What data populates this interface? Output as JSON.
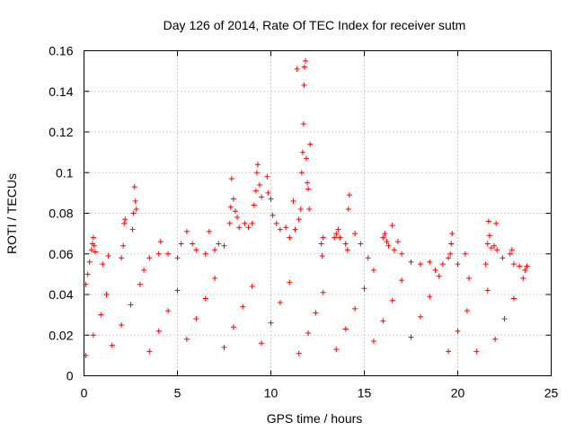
{
  "chart_data": {
    "type": "scatter",
    "title": "Day 126 of 2014, Rate Of TEC Index for receiver sutm",
    "xlabel": "GPS time / hours",
    "ylabel": "ROTI / TECUs",
    "xlim": [
      0,
      25
    ],
    "ylim": [
      0,
      0.16
    ],
    "xticks": [
      0,
      5,
      10,
      15,
      20,
      25
    ],
    "yticks": [
      0,
      0.02,
      0.04,
      0.06,
      0.08,
      0.1,
      0.12,
      0.14,
      0.16
    ],
    "xtick_labels": [
      "0",
      "5",
      "10",
      "15",
      "20",
      "25"
    ],
    "ytick_labels": [
      "0",
      "0.02",
      "0.04",
      "0.06",
      "0.08",
      "0.1",
      "0.12",
      "0.14",
      "0.16"
    ],
    "grid": true,
    "marker": "+",
    "color": "#ff0000",
    "series": [
      {
        "name": "ROTI",
        "points": [
          [
            0.1,
            0.045
          ],
          [
            0.2,
            0.05
          ],
          [
            0.3,
            0.056
          ],
          [
            0.4,
            0.062
          ],
          [
            0.45,
            0.065
          ],
          [
            0.5,
            0.068
          ],
          [
            0.55,
            0.064
          ],
          [
            0.6,
            0.061
          ],
          [
            1.0,
            0.055
          ],
          [
            1.3,
            0.059
          ],
          [
            2.0,
            0.058
          ],
          [
            2.1,
            0.064
          ],
          [
            2.15,
            0.075
          ],
          [
            2.2,
            0.077
          ],
          [
            2.6,
            0.072
          ],
          [
            2.65,
            0.08
          ],
          [
            2.7,
            0.093
          ],
          [
            2.75,
            0.086
          ],
          [
            2.8,
            0.082
          ],
          [
            3.2,
            0.052
          ],
          [
            3.5,
            0.058
          ],
          [
            4.0,
            0.06
          ],
          [
            4.1,
            0.066
          ],
          [
            4.5,
            0.06
          ],
          [
            5.0,
            0.058
          ],
          [
            5.2,
            0.065
          ],
          [
            5.5,
            0.071
          ],
          [
            5.8,
            0.065
          ],
          [
            6.0,
            0.062
          ],
          [
            6.5,
            0.06
          ],
          [
            6.7,
            0.071
          ],
          [
            7.0,
            0.062
          ],
          [
            7.2,
            0.065
          ],
          [
            7.5,
            0.064
          ],
          [
            7.8,
            0.075
          ],
          [
            7.85,
            0.083
          ],
          [
            7.9,
            0.097
          ],
          [
            8.0,
            0.087
          ],
          [
            8.1,
            0.081
          ],
          [
            8.2,
            0.078
          ],
          [
            8.3,
            0.073
          ],
          [
            8.6,
            0.075
          ],
          [
            8.8,
            0.073
          ],
          [
            9.0,
            0.075
          ],
          [
            9.1,
            0.084
          ],
          [
            9.2,
            0.091
          ],
          [
            9.25,
            0.1
          ],
          [
            9.3,
            0.104
          ],
          [
            9.4,
            0.094
          ],
          [
            9.5,
            0.088
          ],
          [
            9.8,
            0.098
          ],
          [
            9.85,
            0.09
          ],
          [
            10.0,
            0.087
          ],
          [
            10.1,
            0.079
          ],
          [
            10.3,
            0.075
          ],
          [
            10.5,
            0.072
          ],
          [
            10.8,
            0.073
          ],
          [
            11.0,
            0.068
          ],
          [
            11.2,
            0.086
          ],
          [
            11.3,
            0.072
          ],
          [
            11.5,
            0.077
          ],
          [
            11.6,
            0.082
          ],
          [
            11.65,
            0.1
          ],
          [
            11.7,
            0.11
          ],
          [
            11.75,
            0.124
          ],
          [
            11.78,
            0.143
          ],
          [
            11.8,
            0.152
          ],
          [
            11.85,
            0.155
          ],
          [
            11.9,
            0.107
          ],
          [
            11.95,
            0.095
          ],
          [
            12.0,
            0.092
          ],
          [
            12.05,
            0.082
          ],
          [
            12.1,
            0.114
          ],
          [
            11.4,
            0.151
          ],
          [
            12.7,
            0.065
          ],
          [
            12.75,
            0.059
          ],
          [
            12.8,
            0.068
          ],
          [
            13.4,
            0.068
          ],
          [
            13.5,
            0.07
          ],
          [
            13.6,
            0.072
          ],
          [
            13.7,
            0.068
          ],
          [
            14.0,
            0.065
          ],
          [
            14.1,
            0.062
          ],
          [
            14.15,
            0.082
          ],
          [
            14.2,
            0.089
          ],
          [
            14.5,
            0.07
          ],
          [
            14.8,
            0.065
          ],
          [
            15.2,
            0.058
          ],
          [
            15.5,
            0.052
          ],
          [
            16.0,
            0.068
          ],
          [
            16.1,
            0.07
          ],
          [
            16.2,
            0.066
          ],
          [
            16.3,
            0.064
          ],
          [
            16.5,
            0.074
          ],
          [
            16.6,
            0.062
          ],
          [
            16.8,
            0.066
          ],
          [
            17.0,
            0.06
          ],
          [
            17.5,
            0.056
          ],
          [
            18.0,
            0.055
          ],
          [
            18.5,
            0.056
          ],
          [
            18.8,
            0.052
          ],
          [
            19.2,
            0.055
          ],
          [
            19.5,
            0.058
          ],
          [
            19.6,
            0.06
          ],
          [
            19.65,
            0.065
          ],
          [
            19.7,
            0.07
          ],
          [
            20.0,
            0.055
          ],
          [
            20.4,
            0.06
          ],
          [
            20.6,
            0.048
          ],
          [
            21.5,
            0.055
          ],
          [
            21.6,
            0.065
          ],
          [
            21.65,
            0.076
          ],
          [
            21.7,
            0.069
          ],
          [
            21.8,
            0.063
          ],
          [
            21.95,
            0.064
          ],
          [
            22.05,
            0.075
          ],
          [
            22.1,
            0.062
          ],
          [
            22.4,
            0.058
          ],
          [
            22.8,
            0.06
          ],
          [
            22.9,
            0.062
          ],
          [
            23.0,
            0.055
          ],
          [
            23.3,
            0.054
          ],
          [
            23.6,
            0.052
          ],
          [
            23.7,
            0.054
          ],
          [
            0.1,
            0.01
          ],
          [
            0.5,
            0.02
          ],
          [
            0.9,
            0.03
          ],
          [
            1.2,
            0.04
          ],
          [
            1.5,
            0.015
          ],
          [
            2.0,
            0.025
          ],
          [
            2.5,
            0.035
          ],
          [
            3.0,
            0.045
          ],
          [
            3.5,
            0.012
          ],
          [
            4.0,
            0.022
          ],
          [
            4.5,
            0.032
          ],
          [
            5.0,
            0.042
          ],
          [
            5.5,
            0.018
          ],
          [
            6.0,
            0.028
          ],
          [
            6.5,
            0.038
          ],
          [
            7.0,
            0.048
          ],
          [
            7.5,
            0.014
          ],
          [
            8.0,
            0.024
          ],
          [
            8.5,
            0.034
          ],
          [
            9.0,
            0.044
          ],
          [
            9.5,
            0.016
          ],
          [
            10.0,
            0.026
          ],
          [
            10.5,
            0.036
          ],
          [
            11.0,
            0.046
          ],
          [
            11.5,
            0.011
          ],
          [
            12.0,
            0.021
          ],
          [
            12.4,
            0.031
          ],
          [
            12.8,
            0.041
          ],
          [
            13.5,
            0.013
          ],
          [
            14.0,
            0.023
          ],
          [
            14.5,
            0.033
          ],
          [
            15.0,
            0.043
          ],
          [
            15.5,
            0.017
          ],
          [
            16.0,
            0.027
          ],
          [
            16.5,
            0.037
          ],
          [
            17.0,
            0.047
          ],
          [
            17.5,
            0.019
          ],
          [
            18.0,
            0.029
          ],
          [
            18.5,
            0.039
          ],
          [
            19.0,
            0.049
          ],
          [
            19.5,
            0.012
          ],
          [
            20.0,
            0.022
          ],
          [
            20.5,
            0.032
          ],
          [
            21.0,
            0.012
          ],
          [
            21.6,
            0.042
          ],
          [
            22.0,
            0.018
          ],
          [
            22.5,
            0.028
          ],
          [
            23.0,
            0.038
          ],
          [
            23.5,
            0.048
          ]
        ]
      }
    ]
  }
}
